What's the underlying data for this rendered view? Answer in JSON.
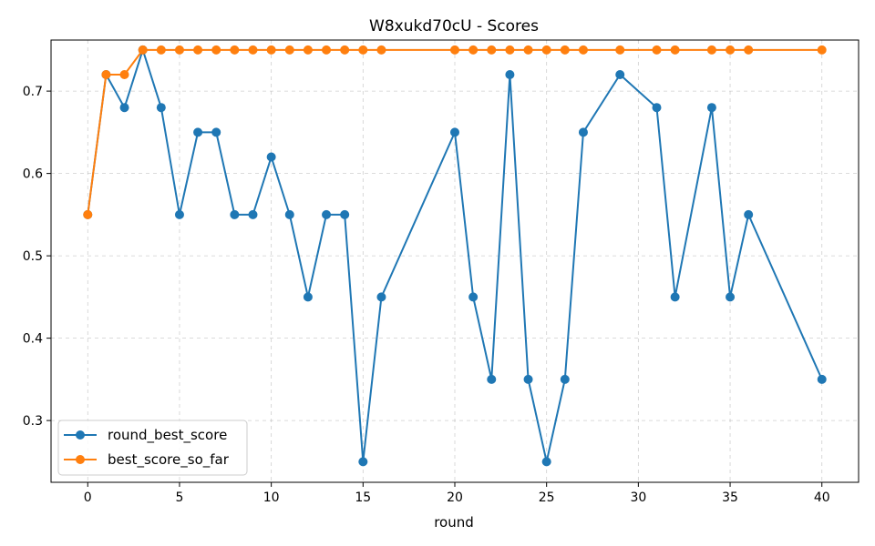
{
  "chart_data": {
    "type": "line",
    "title": "W8xukd70cU - Scores",
    "xlabel": "round",
    "ylabel": "",
    "xlim": [
      -2,
      42
    ],
    "ylim": [
      0.225,
      0.762
    ],
    "xticks": [
      0,
      5,
      10,
      15,
      20,
      25,
      30,
      35,
      40
    ],
    "yticks": [
      0.3,
      0.4,
      0.5,
      0.6,
      0.7
    ],
    "ytick_labels": [
      "0.3",
      "0.4",
      "0.5",
      "0.6",
      "0.7"
    ],
    "grid": true,
    "legend_position": "lower-left",
    "series": [
      {
        "name": "round_best_score",
        "color": "#1f77b4",
        "x": [
          0,
          1,
          2,
          3,
          4,
          5,
          6,
          7,
          8,
          9,
          10,
          11,
          12,
          13,
          14,
          15,
          16,
          20,
          21,
          22,
          23,
          24,
          25,
          26,
          27,
          29,
          31,
          32,
          34,
          35,
          36,
          40
        ],
        "y": [
          0.55,
          0.72,
          0.68,
          0.75,
          0.68,
          0.55,
          0.65,
          0.65,
          0.55,
          0.55,
          0.62,
          0.55,
          0.45,
          0.55,
          0.55,
          0.25,
          0.45,
          0.65,
          0.45,
          0.35,
          0.72,
          0.35,
          0.25,
          0.35,
          0.65,
          0.72,
          0.68,
          0.45,
          0.68,
          0.45,
          0.55,
          0.35
        ]
      },
      {
        "name": "best_score_so_far",
        "color": "#ff7f0e",
        "x": [
          0,
          1,
          2,
          3,
          4,
          5,
          6,
          7,
          8,
          9,
          10,
          11,
          12,
          13,
          14,
          15,
          16,
          20,
          21,
          22,
          23,
          24,
          25,
          26,
          27,
          29,
          31,
          32,
          34,
          35,
          36,
          40
        ],
        "y": [
          0.55,
          0.72,
          0.72,
          0.75,
          0.75,
          0.75,
          0.75,
          0.75,
          0.75,
          0.75,
          0.75,
          0.75,
          0.75,
          0.75,
          0.75,
          0.75,
          0.75,
          0.75,
          0.75,
          0.75,
          0.75,
          0.75,
          0.75,
          0.75,
          0.75,
          0.75,
          0.75,
          0.75,
          0.75,
          0.75,
          0.75,
          0.75
        ]
      }
    ]
  }
}
